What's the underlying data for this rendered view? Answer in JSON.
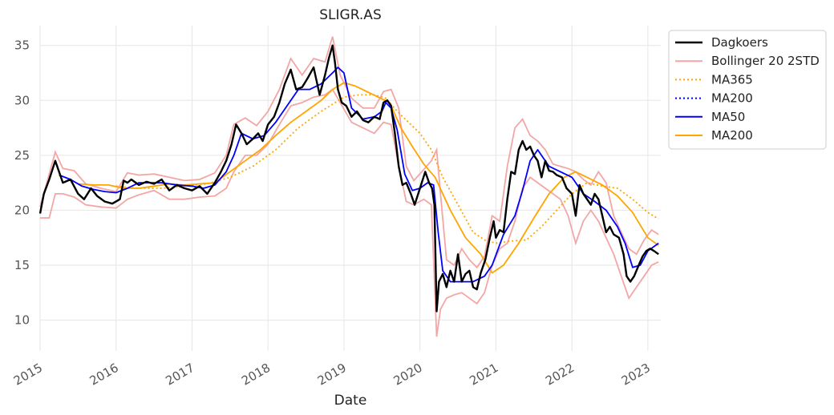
{
  "chart_data": {
    "type": "line",
    "title": "SLIGR.AS",
    "xlabel": "Date",
    "ylabel": "",
    "xlim": [
      2015.0,
      2023.17
    ],
    "ylim": [
      7.2,
      36.8
    ],
    "grid": true,
    "legend_position": "outside-top-right",
    "x_ticks": [
      2015,
      2016,
      2017,
      2018,
      2019,
      2020,
      2021,
      2022,
      2023
    ],
    "x_tick_labels": [
      "2015",
      "2016",
      "2017",
      "2018",
      "2019",
      "2020",
      "2021",
      "2022",
      "2023"
    ],
    "y_ticks": [
      10,
      15,
      20,
      25,
      30,
      35
    ],
    "y_tick_labels": [
      "10",
      "15",
      "20",
      "25",
      "30",
      "35"
    ],
    "series": [
      {
        "name": "Dagkoers",
        "color": "#000000",
        "style": "solid",
        "x": [
          2015.0,
          2015.05,
          2015.12,
          2015.2,
          2015.3,
          2015.4,
          2015.5,
          2015.58,
          2015.67,
          2015.75,
          2015.85,
          2015.95,
          2016.05,
          2016.1,
          2016.15,
          2016.2,
          2016.3,
          2016.4,
          2016.5,
          2016.6,
          2016.7,
          2016.8,
          2016.9,
          2017.0,
          2017.1,
          2017.2,
          2017.3,
          2017.38,
          2017.45,
          2017.52,
          2017.58,
          2017.65,
          2017.72,
          2017.8,
          2017.87,
          2017.93,
          2018.0,
          2018.08,
          2018.15,
          2018.22,
          2018.3,
          2018.37,
          2018.45,
          2018.52,
          2018.6,
          2018.68,
          2018.75,
          2018.8,
          2018.85,
          2018.88,
          2018.92,
          2018.97,
          2019.03,
          2019.1,
          2019.17,
          2019.25,
          2019.32,
          2019.4,
          2019.47,
          2019.52,
          2019.57,
          2019.62,
          2019.67,
          2019.72,
          2019.77,
          2019.82,
          2019.88,
          2019.93,
          2020.0,
          2020.07,
          2020.12,
          2020.16,
          2020.19,
          2020.22,
          2020.25,
          2020.3,
          2020.35,
          2020.4,
          2020.45,
          2020.5,
          2020.55,
          2020.6,
          2020.65,
          2020.7,
          2020.75,
          2020.8,
          2020.86,
          2020.92,
          2020.97,
          2021.0,
          2021.05,
          2021.1,
          2021.15,
          2021.2,
          2021.25,
          2021.3,
          2021.35,
          2021.4,
          2021.45,
          2021.5,
          2021.55,
          2021.6,
          2021.65,
          2021.7,
          2021.75,
          2021.8,
          2021.87,
          2021.93,
          2022.0,
          2022.05,
          2022.1,
          2022.15,
          2022.2,
          2022.25,
          2022.3,
          2022.35,
          2022.4,
          2022.45,
          2022.5,
          2022.55,
          2022.62,
          2022.68,
          2022.72,
          2022.77,
          2022.82,
          2022.88,
          2022.93,
          2022.98,
          2023.03,
          2023.08,
          2023.14
        ],
        "y": [
          19.7,
          21.5,
          22.8,
          24.5,
          22.5,
          22.8,
          21.5,
          21.0,
          22.0,
          21.3,
          20.8,
          20.6,
          21.0,
          22.7,
          22.5,
          22.8,
          22.3,
          22.6,
          22.4,
          22.8,
          21.8,
          22.3,
          22.0,
          21.8,
          22.2,
          21.5,
          22.5,
          23.5,
          24.5,
          26.0,
          27.8,
          27.0,
          26.0,
          26.5,
          27.0,
          26.3,
          27.8,
          28.5,
          29.8,
          31.5,
          32.8,
          31.0,
          31.2,
          32.0,
          33.0,
          30.5,
          32.3,
          33.8,
          35.0,
          33.5,
          31.0,
          29.8,
          29.5,
          28.5,
          29.0,
          28.2,
          28.0,
          28.5,
          28.3,
          29.8,
          30.0,
          29.5,
          27.0,
          24.0,
          22.3,
          22.5,
          21.5,
          20.5,
          22.0,
          23.5,
          22.5,
          22.0,
          20.5,
          10.8,
          13.5,
          14.2,
          13.0,
          14.5,
          13.5,
          16.0,
          13.5,
          14.2,
          14.5,
          13.0,
          12.8,
          14.3,
          15.5,
          17.5,
          19.0,
          17.5,
          18.2,
          18.0,
          21.0,
          23.5,
          23.3,
          25.5,
          26.3,
          25.5,
          25.8,
          25.0,
          24.5,
          23.0,
          24.5,
          23.6,
          23.5,
          23.2,
          23.0,
          22.0,
          21.5,
          19.5,
          22.3,
          21.5,
          21.0,
          20.5,
          21.5,
          21.0,
          19.5,
          18.0,
          18.5,
          17.8,
          17.5,
          16.0,
          14.0,
          13.5,
          14.0,
          15.0,
          15.8,
          16.3,
          16.5,
          16.3,
          16.0
        ]
      },
      {
        "name": "Bollinger 20 2STD",
        "color": "#f4a6a6",
        "style": "solid",
        "bands": {
          "x": [
            2015.0,
            2015.12,
            2015.2,
            2015.3,
            2015.45,
            2015.6,
            2015.8,
            2016.0,
            2016.15,
            2016.3,
            2016.5,
            2016.7,
            2016.9,
            2017.1,
            2017.3,
            2017.45,
            2017.55,
            2017.7,
            2017.85,
            2018.0,
            2018.15,
            2018.3,
            2018.45,
            2018.6,
            2018.75,
            2018.85,
            2018.95,
            2019.1,
            2019.25,
            2019.4,
            2019.52,
            2019.62,
            2019.72,
            2019.82,
            2019.92,
            2020.05,
            2020.15,
            2020.22,
            2020.27,
            2020.35,
            2020.45,
            2020.55,
            2020.65,
            2020.75,
            2020.85,
            2020.95,
            2021.05,
            2021.15,
            2021.25,
            2021.35,
            2021.45,
            2021.55,
            2021.65,
            2021.75,
            2021.85,
            2021.95,
            2022.05,
            2022.15,
            2022.25,
            2022.35,
            2022.45,
            2022.55,
            2022.65,
            2022.75,
            2022.85,
            2022.95,
            2023.05,
            2023.14
          ],
          "upper": [
            20.3,
            23.3,
            25.3,
            23.8,
            23.6,
            22.4,
            22.0,
            21.7,
            23.4,
            23.2,
            23.3,
            23.0,
            22.7,
            22.8,
            23.4,
            25.0,
            27.8,
            28.4,
            27.7,
            29.0,
            31.0,
            33.8,
            32.3,
            33.8,
            33.5,
            35.8,
            32.3,
            30.2,
            29.3,
            29.3,
            30.8,
            31.0,
            29.3,
            24.0,
            22.7,
            23.7,
            24.5,
            25.5,
            21.5,
            15.5,
            15.0,
            16.5,
            15.5,
            14.8,
            15.8,
            19.5,
            19.0,
            24.0,
            27.5,
            28.3,
            26.8,
            26.3,
            25.5,
            24.2,
            24.0,
            23.8,
            23.5,
            22.8,
            22.3,
            23.5,
            22.5,
            19.5,
            18.0,
            16.5,
            16.0,
            17.3,
            18.2,
            17.8
          ],
          "lower": [
            19.3,
            19.3,
            21.5,
            21.5,
            21.2,
            20.5,
            20.3,
            20.2,
            21.0,
            21.4,
            21.8,
            21.0,
            21.0,
            21.2,
            21.3,
            22.0,
            23.5,
            25.0,
            25.0,
            26.0,
            27.8,
            29.5,
            29.8,
            30.3,
            30.5,
            31.0,
            29.8,
            28.0,
            27.5,
            27.0,
            28.0,
            27.8,
            24.0,
            20.8,
            20.5,
            21.0,
            20.5,
            8.5,
            11.0,
            12.0,
            12.3,
            12.5,
            12.0,
            11.5,
            12.5,
            15.0,
            16.5,
            17.0,
            19.0,
            22.0,
            23.0,
            22.5,
            22.0,
            21.5,
            21.0,
            19.5,
            17.0,
            19.0,
            20.0,
            19.0,
            17.5,
            16.0,
            14.0,
            12.0,
            13.0,
            14.0,
            15.0,
            15.3
          ]
        }
      },
      {
        "name": "MA365",
        "color": "#ffa500",
        "style": "dotted",
        "x": [
          2016.0,
          2016.3,
          2016.6,
          2016.9,
          2017.2,
          2017.5,
          2017.8,
          2018.1,
          2018.4,
          2018.7,
          2019.0,
          2019.2,
          2019.4,
          2019.55,
          2019.7,
          2019.85,
          2020.0,
          2020.15,
          2020.3,
          2020.5,
          2020.7,
          2020.85,
          2021.0,
          2021.2,
          2021.4,
          2021.6,
          2021.8,
          2022.0,
          2022.2,
          2022.4,
          2022.6,
          2022.8,
          2023.0,
          2023.14
        ],
        "y": [
          22.2,
          22.0,
          22.0,
          22.2,
          22.4,
          23.0,
          24.0,
          25.5,
          27.5,
          29.0,
          30.3,
          30.5,
          30.5,
          30.2,
          29.0,
          28.0,
          27.0,
          25.5,
          23.0,
          20.5,
          18.0,
          17.3,
          17.0,
          17.2,
          17.3,
          18.5,
          20.0,
          21.5,
          22.5,
          22.2,
          22.0,
          21.0,
          19.8,
          19.2
        ]
      },
      {
        "name": "MA200",
        "color": "#0000ff",
        "style": "dotted",
        "x": [],
        "y": []
      },
      {
        "name": "MA50",
        "color": "#0000ff",
        "style": "solid",
        "x": [
          2015.25,
          2015.4,
          2015.55,
          2015.7,
          2015.85,
          2016.0,
          2016.15,
          2016.3,
          2016.45,
          2016.6,
          2016.8,
          2017.0,
          2017.15,
          2017.3,
          2017.45,
          2017.55,
          2017.65,
          2017.8,
          2017.95,
          2018.1,
          2018.25,
          2018.4,
          2018.55,
          2018.7,
          2018.85,
          2018.92,
          2019.0,
          2019.1,
          2019.25,
          2019.4,
          2019.5,
          2019.55,
          2019.62,
          2019.7,
          2019.8,
          2019.9,
          2020.0,
          2020.1,
          2020.18,
          2020.24,
          2020.3,
          2020.4,
          2020.55,
          2020.7,
          2020.85,
          2020.95,
          2021.1,
          2021.25,
          2021.35,
          2021.45,
          2021.55,
          2021.7,
          2021.85,
          2022.0,
          2022.15,
          2022.3,
          2022.45,
          2022.6,
          2022.7,
          2022.8,
          2022.9,
          2023.0,
          2023.14
        ],
        "y": [
          23.2,
          22.8,
          22.2,
          21.9,
          21.7,
          21.6,
          22.0,
          22.5,
          22.5,
          22.5,
          22.3,
          22.2,
          22.0,
          22.3,
          23.5,
          25.0,
          27.0,
          26.5,
          26.8,
          28.0,
          29.5,
          31.0,
          31.0,
          31.5,
          32.5,
          33.0,
          32.5,
          29.3,
          28.3,
          28.5,
          29.0,
          29.8,
          29.3,
          27.3,
          23.3,
          21.8,
          22.0,
          22.5,
          22.3,
          18.0,
          14.5,
          13.5,
          13.5,
          13.5,
          14.0,
          15.0,
          17.8,
          19.5,
          21.8,
          24.5,
          25.5,
          24.0,
          23.5,
          23.0,
          21.5,
          20.8,
          20.0,
          18.5,
          17.0,
          14.8,
          15.0,
          16.3,
          17.0
        ]
      },
      {
        "name": "MA200",
        "color": "#ffa500",
        "style": "solid",
        "x": [
          2015.5,
          2015.7,
          2015.9,
          2016.1,
          2016.3,
          2016.5,
          2016.7,
          2016.9,
          2017.1,
          2017.3,
          2017.5,
          2017.7,
          2017.9,
          2018.1,
          2018.3,
          2018.5,
          2018.7,
          2018.85,
          2019.0,
          2019.15,
          2019.3,
          2019.45,
          2019.6,
          2019.75,
          2019.9,
          2020.05,
          2020.2,
          2020.4,
          2020.6,
          2020.8,
          2020.95,
          2021.1,
          2021.3,
          2021.5,
          2021.7,
          2021.9,
          2022.05,
          2022.2,
          2022.4,
          2022.6,
          2022.8,
          2023.0,
          2023.14
        ],
        "y": [
          22.4,
          22.3,
          22.3,
          22.0,
          22.0,
          22.2,
          22.4,
          22.3,
          22.4,
          22.5,
          23.5,
          24.5,
          25.5,
          26.8,
          28.0,
          29.0,
          30.0,
          31.0,
          31.6,
          31.3,
          30.8,
          30.3,
          29.8,
          27.5,
          25.8,
          24.2,
          23.0,
          20.0,
          17.5,
          16.0,
          14.3,
          15.0,
          17.0,
          19.3,
          21.5,
          23.0,
          23.5,
          23.0,
          22.3,
          21.3,
          19.8,
          17.5,
          16.8
        ]
      }
    ]
  }
}
